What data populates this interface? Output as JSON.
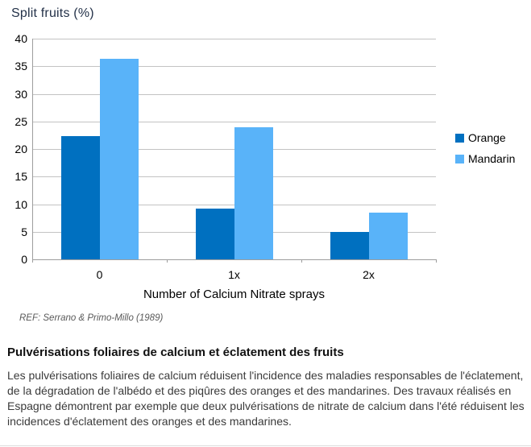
{
  "chart_data": {
    "type": "bar",
    "title": "Split fruits (%)",
    "xlabel": "Number of Calcium Nitrate sprays",
    "ylabel": "",
    "categories": [
      "0",
      "1x",
      "2x"
    ],
    "series": [
      {
        "name": "Orange",
        "color": "#0070C0",
        "values": [
          22.3,
          9.2,
          5.0
        ]
      },
      {
        "name": "Mandarin",
        "color": "#59B3F9",
        "values": [
          36.4,
          23.9,
          8.5
        ]
      }
    ],
    "ylim": [
      0,
      40
    ],
    "ytick_step": 5,
    "grid": true,
    "legend_position": "right",
    "reference": "REF: Serrano & Primo-Millo (1989)"
  },
  "article": {
    "heading": "Pulvérisations foliaires de calcium et éclatement des fruits",
    "body": "Les pulvérisations foliaires de calcium réduisent l'incidence des maladies responsables de l'éclatement, de la dégradation de l'albédo et des piqûres des oranges et des mandarines. Des travaux réalisés en Espagne démontrent par exemple que deux pulvérisations de nitrate de calcium dans l'été réduisent les incidences d'éclatement des oranges et des mandarines."
  }
}
